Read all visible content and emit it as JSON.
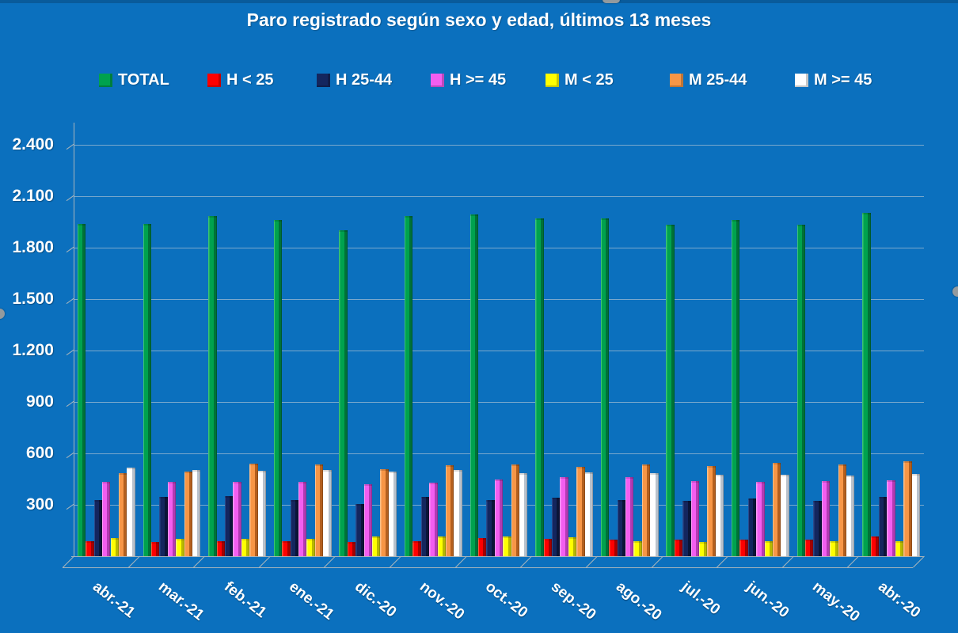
{
  "page": {
    "background_color": "#0B70BE",
    "gridline_color": "rgba(215,215,215,0.55)",
    "axis_color": "#a9b5bc",
    "text_color": "#ffffff"
  },
  "chart_data": {
    "type": "bar",
    "title": "Paro registrado según sexo y edad, últimos 13 meses",
    "xlabel": "",
    "ylabel": "",
    "ylim": [
      0,
      2400
    ],
    "ytick_step": 300,
    "yticks": [
      300,
      600,
      900,
      1200,
      1500,
      1800,
      2100,
      2400
    ],
    "ytick_labels": [
      "300",
      "600",
      "900",
      "1.200",
      "1.500",
      "1.800",
      "2.100",
      "2.400"
    ],
    "grid": true,
    "legend_position": "top",
    "categories": [
      "abr.-21",
      "mar.-21",
      "feb.-21",
      "ene.-21",
      "dic.-20",
      "nov.-20",
      "oct.-20",
      "sep.-20",
      "ago.-20",
      "jul.-20",
      "jun.-20",
      "may.-20",
      "abr.-20"
    ],
    "series": [
      {
        "name": "TOTAL",
        "color": "#00A24E",
        "color_light": "#3cc473",
        "color_dark": "#007138",
        "values": [
          1940,
          1940,
          1985,
          1960,
          1900,
          1985,
          1995,
          1970,
          1970,
          1935,
          1960,
          1935,
          2005
        ]
      },
      {
        "name": "H < 25",
        "color": "#FE0000",
        "color_light": "#ff5a3c",
        "color_dark": "#a50000",
        "values": [
          90,
          85,
          90,
          90,
          85,
          90,
          105,
          100,
          95,
          95,
          95,
          95,
          115
        ]
      },
      {
        "name": "H 25-44",
        "color": "#14265e",
        "color_light": "#2a4a8c",
        "color_dark": "#0a1538",
        "values": [
          330,
          345,
          350,
          330,
          305,
          345,
          330,
          340,
          330,
          325,
          335,
          325,
          345
        ]
      },
      {
        "name": "H >= 45",
        "color": "#f35ef0",
        "color_light": "#ff9cf8",
        "color_dark": "#b33ab3",
        "values": [
          435,
          435,
          435,
          435,
          420,
          430,
          450,
          460,
          460,
          440,
          435,
          440,
          445
        ]
      },
      {
        "name": "M < 25",
        "color": "#ffff00",
        "color_light": "#ffff7a",
        "color_dark": "#b8b800",
        "values": [
          105,
          100,
          100,
          100,
          115,
          115,
          115,
          110,
          90,
          85,
          90,
          90,
          90
        ]
      },
      {
        "name": "M 25-44",
        "color": "#F79646",
        "color_light": "#ffc08a",
        "color_dark": "#b35f1e",
        "values": [
          485,
          495,
          540,
          535,
          510,
          530,
          535,
          520,
          535,
          525,
          545,
          535,
          555
        ]
      },
      {
        "name": "M >= 45",
        "color": "#ffffff",
        "color_light": "#ffffff",
        "color_dark": "#b9c2cc",
        "values": [
          515,
          505,
          500,
          505,
          495,
          505,
          485,
          490,
          485,
          475,
          475,
          470,
          480
        ]
      }
    ]
  }
}
